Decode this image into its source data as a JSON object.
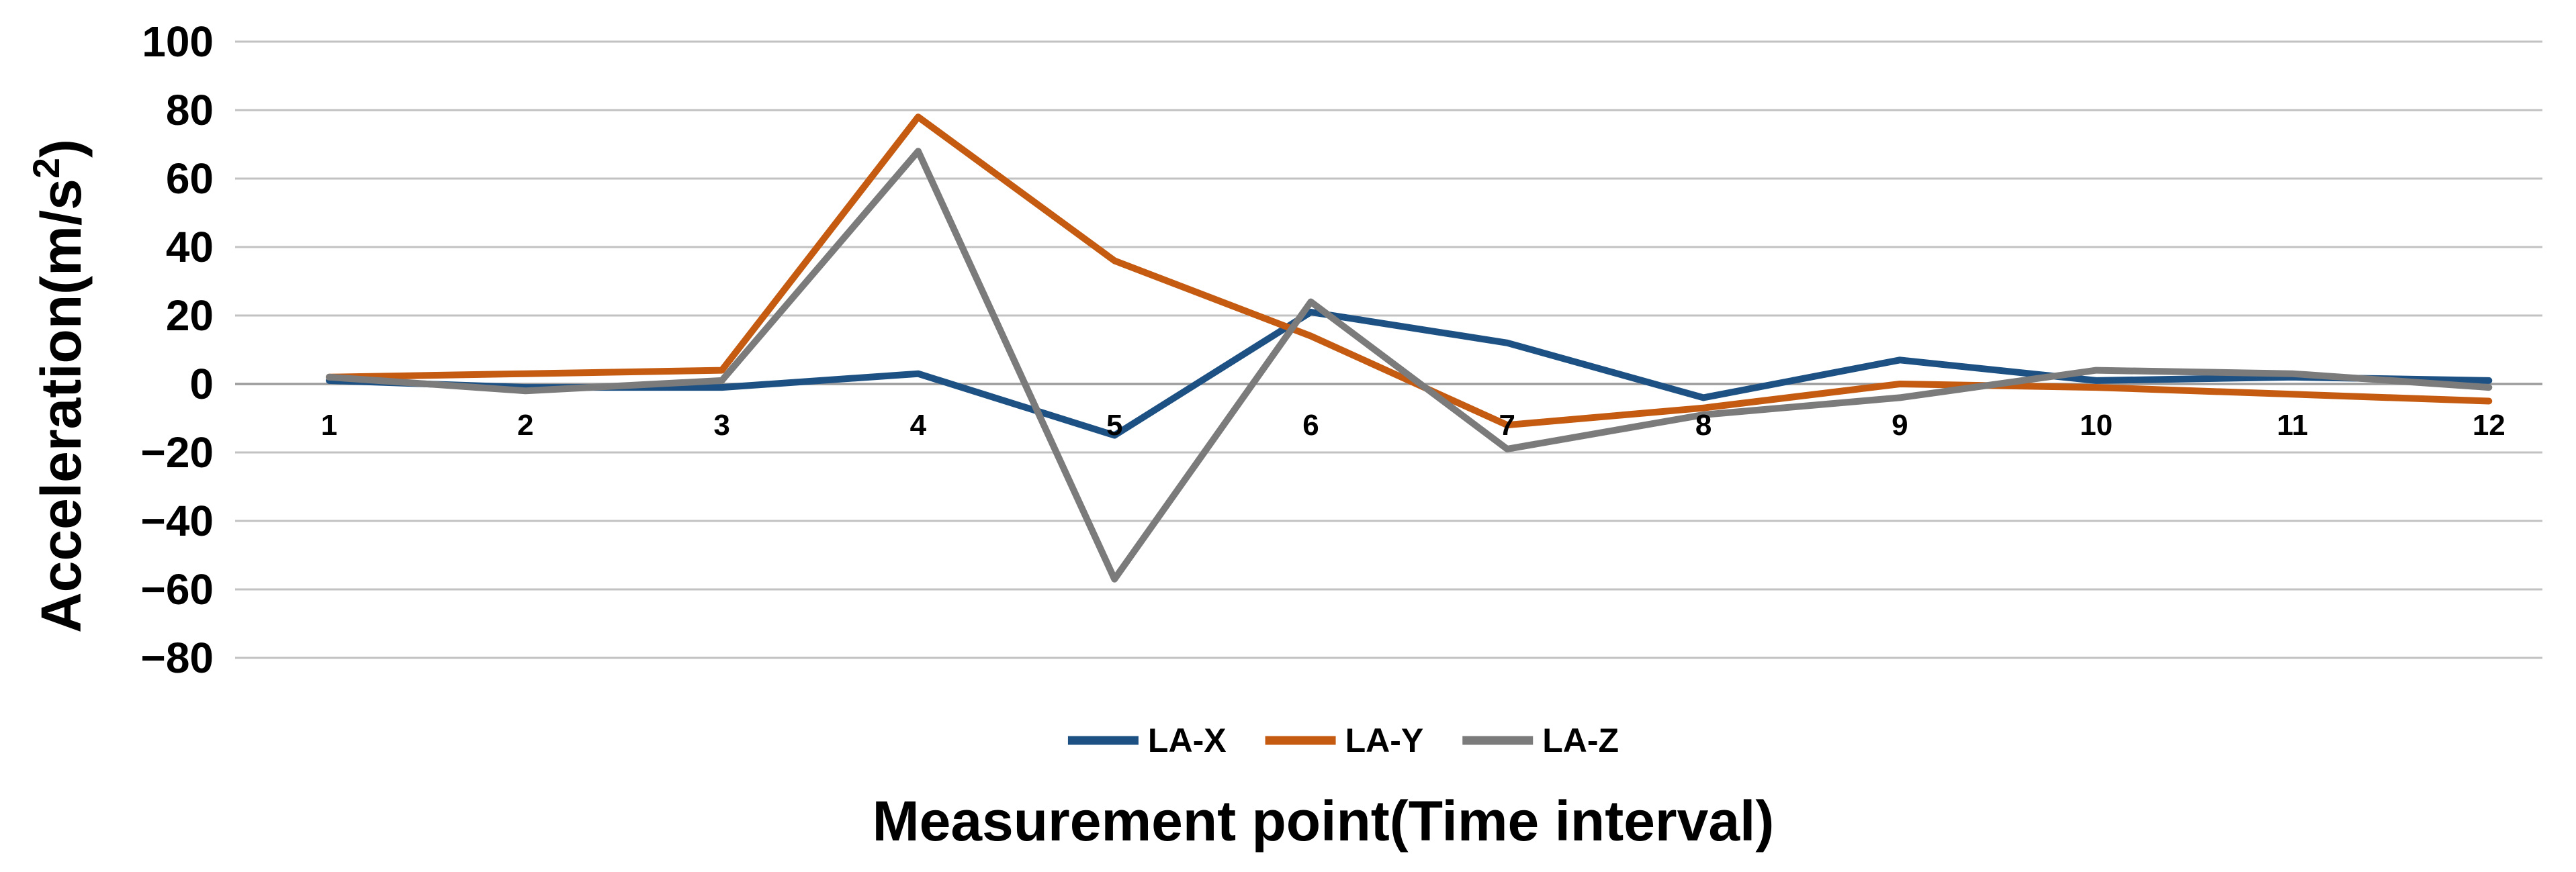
{
  "chart_data": {
    "type": "line",
    "title": "",
    "xlabel": "Measurement point(Time interval)",
    "ylabel": "Acceleration(m/s²)",
    "ylabel_parts": {
      "base": "Acceleration(m/s",
      "sup": "2",
      "close": ")"
    },
    "categories": [
      "1",
      "2",
      "3",
      "4",
      "5",
      "6",
      "7",
      "8",
      "9",
      "10",
      "11",
      "12"
    ],
    "series": [
      {
        "name": "LA-X",
        "color": "#1D5184",
        "values": [
          1,
          -1,
          -1,
          3,
          -15,
          21,
          12,
          -4,
          7,
          1,
          2,
          1
        ]
      },
      {
        "name": "LA-Y",
        "color": "#C55A11",
        "values": [
          2,
          3,
          4,
          78,
          36,
          14,
          -12,
          -7,
          0,
          -1,
          -3,
          -5
        ]
      },
      {
        "name": "LA-Z",
        "color": "#7B7B7B",
        "values": [
          2,
          -2,
          1,
          68,
          -57,
          24,
          -19,
          -9,
          -4,
          4,
          3,
          -1
        ]
      }
    ],
    "y_ticks": [
      100,
      80,
      60,
      40,
      20,
      0,
      -20,
      -40,
      -60,
      -80
    ],
    "ylim": [
      -80,
      100
    ],
    "grid": true,
    "legend_position": "bottom",
    "colors": {
      "gridline": "#C2C2C2",
      "zero_line": "#9C9C9C",
      "background": "#FFFFFF",
      "text": "#000000"
    }
  }
}
